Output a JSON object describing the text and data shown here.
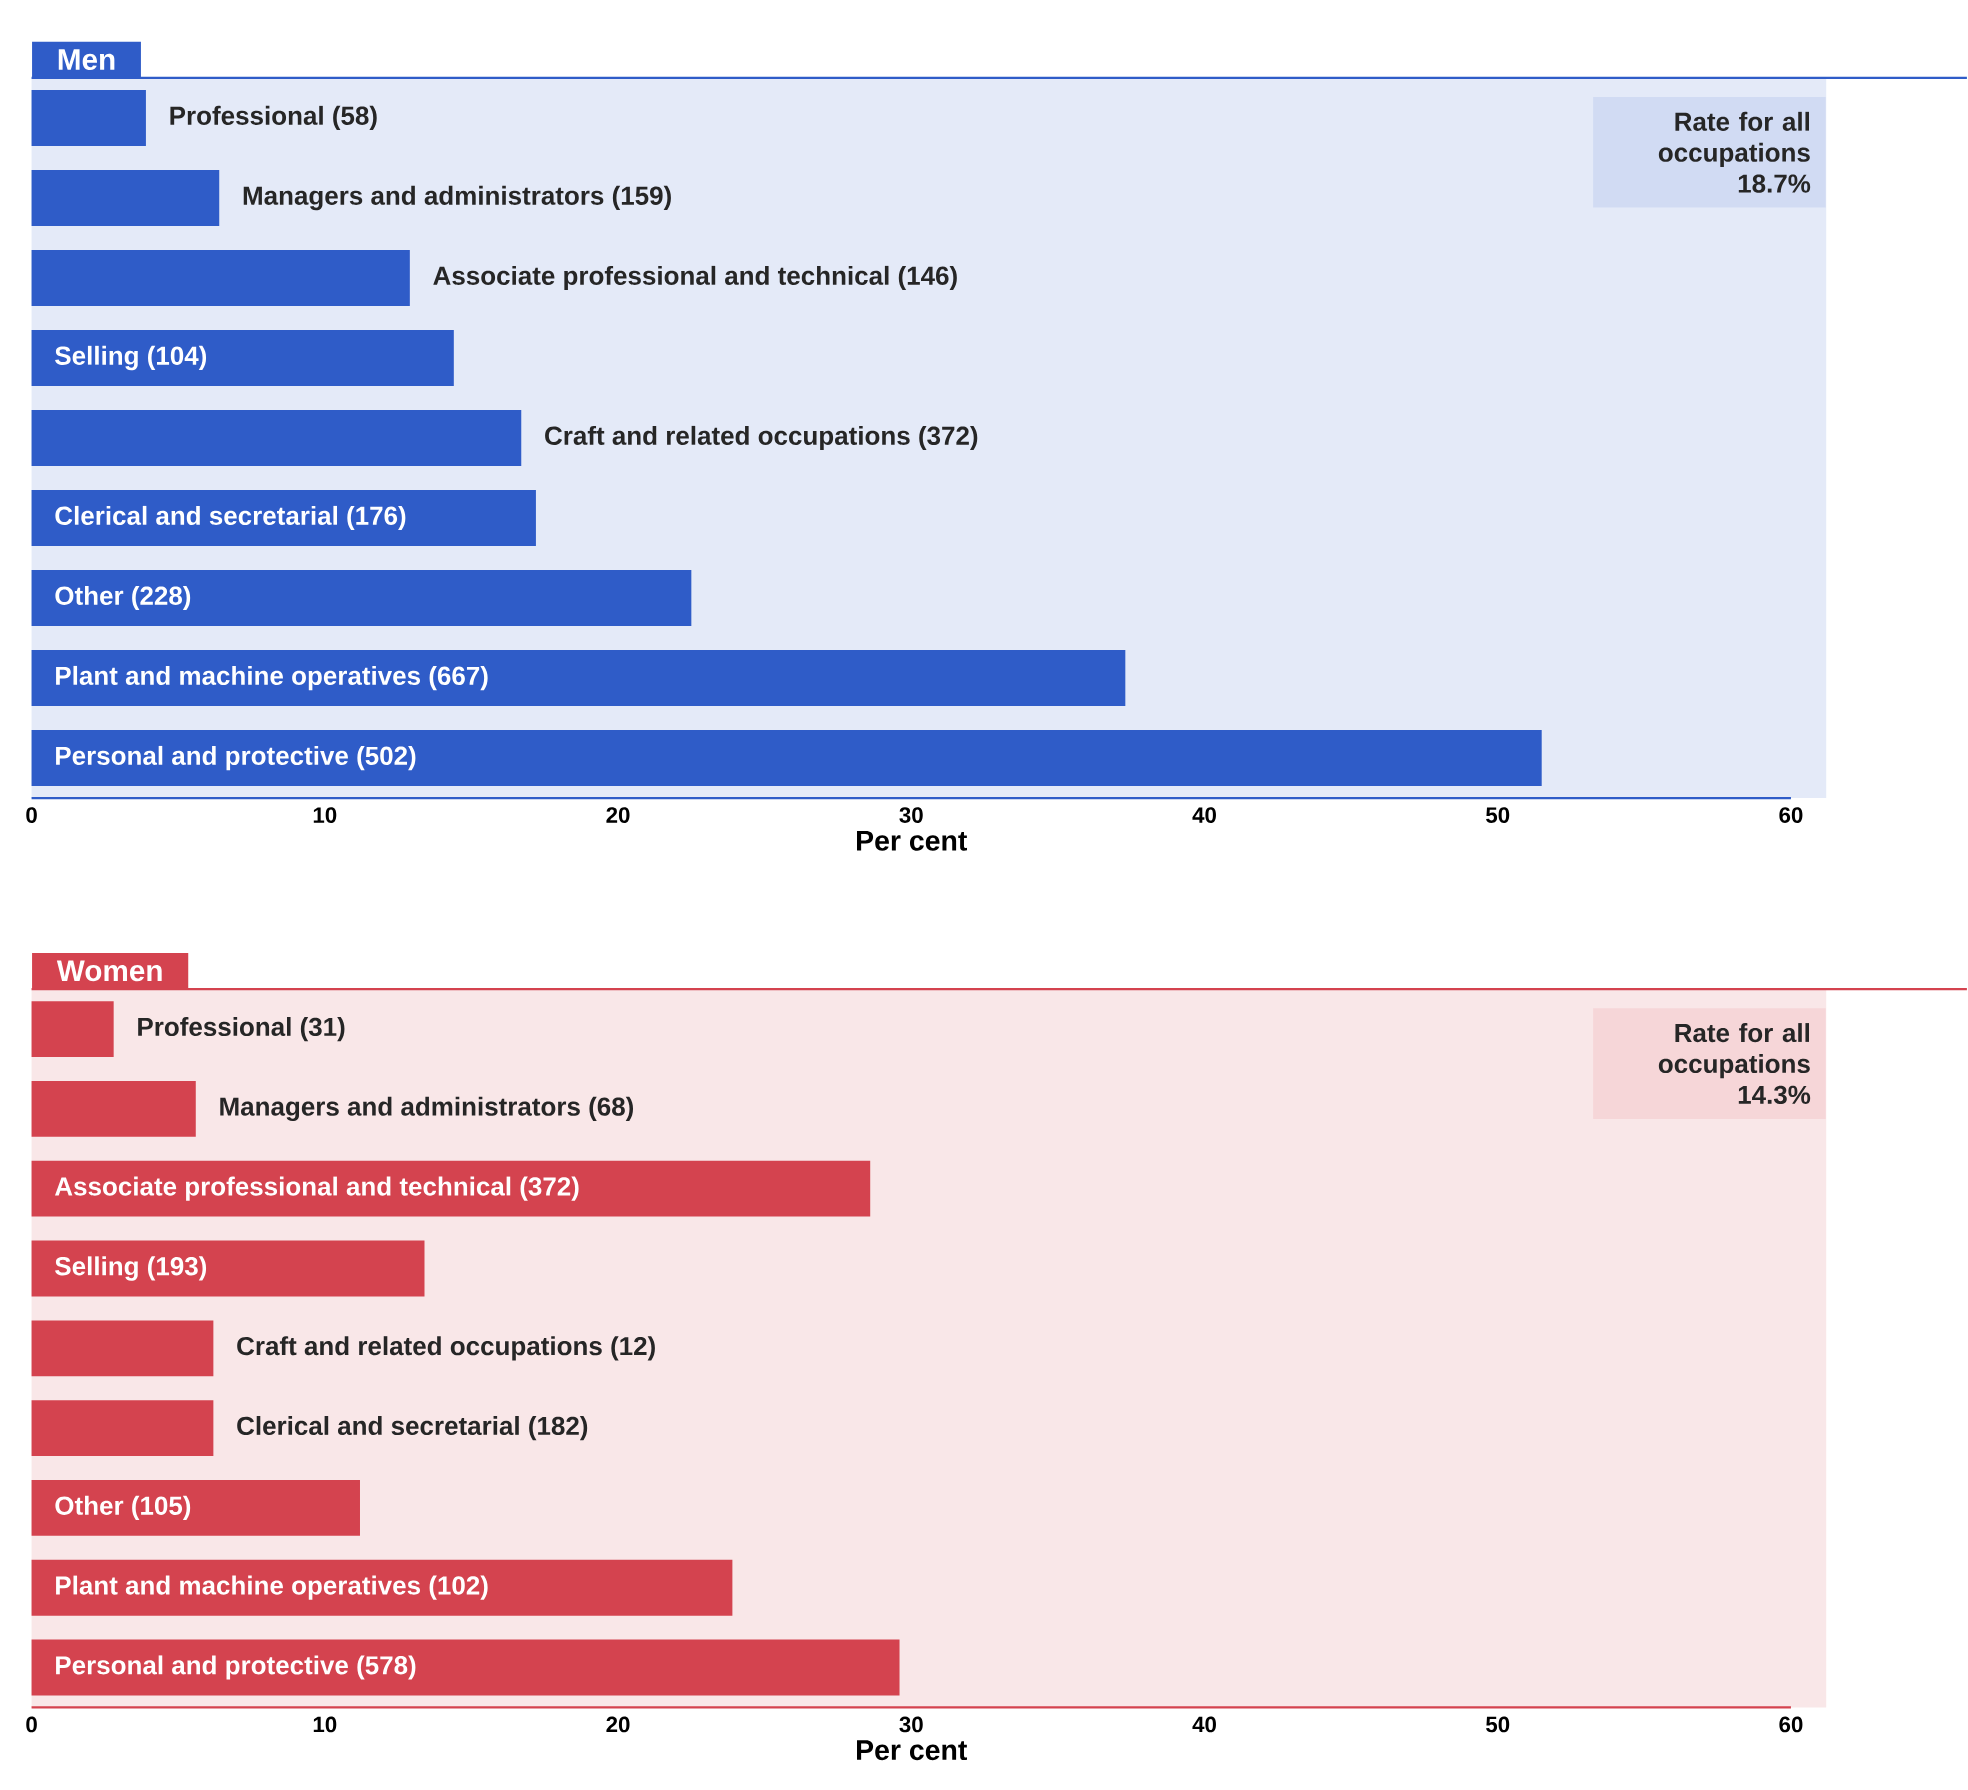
{
  "chart_data": [
    {
      "type": "bar",
      "orientation": "horizontal",
      "title": "Men",
      "xlabel": "Per cent",
      "categories": [
        "Professional (58)",
        "Managers and administrators (159)",
        "Associate professional and technical (146)",
        "Selling (104)",
        "Craft and related occupations (372)",
        "Clerical and secretarial (176)",
        "Other (228)",
        "Plant and machine operatives (667)",
        "Personal and protective (502)"
      ],
      "series": [
        {
          "color": "#2f5cc8",
          "values": [
            3.9,
            6.4,
            12.9,
            14.4,
            16.7,
            17.2,
            22.5,
            37.3,
            51.5
          ]
        }
      ],
      "xlim": [
        0,
        60
      ],
      "xticks": [
        0,
        10,
        20,
        30,
        40,
        50,
        60
      ],
      "annotations": [
        "Rate for all occupations 18.7%"
      ]
    },
    {
      "type": "bar",
      "orientation": "horizontal",
      "title": "Women",
      "xlabel": "Per cent",
      "categories": [
        "Professional (31)",
        "Managers and administrators (68)",
        "Associate professional and technical (372)",
        "Selling (193)",
        "Craft and related occupations (12)",
        "Clerical and secretarial (182)",
        "Other (105)",
        "Plant and machine operatives (102)",
        "Personal and protective (578)"
      ],
      "series": [
        {
          "color": "#d4434f",
          "values": [
            2.8,
            5.6,
            28.6,
            13.4,
            6.2,
            6.2,
            11.2,
            23.9,
            29.6
          ]
        }
      ],
      "xlim": [
        0,
        60
      ],
      "xticks": [
        0,
        10,
        20,
        30,
        40,
        50,
        60
      ],
      "annotations": [
        "Rate for all occupations 14.3%"
      ]
    }
  ]
}
